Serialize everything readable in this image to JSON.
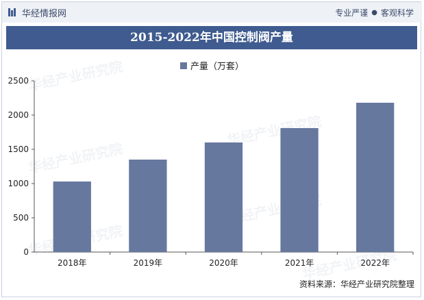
{
  "header": {
    "logo_text": "华经情报网",
    "tagline_left": "专业严谨",
    "tagline_dot": "●",
    "tagline_right": "客观科学"
  },
  "source": "资料来源：华经产业研究院整理",
  "watermark": "华经产业研究院",
  "colors": {
    "bar": "#67789f",
    "title_bg": "#3f5b8f",
    "header_bg": "#eef1f6"
  },
  "chart_data": {
    "type": "bar",
    "title": "2015-2022年中国控制阀产量",
    "categories": [
      "2018年",
      "2019年",
      "2020年",
      "2021年",
      "2022年"
    ],
    "series": [
      {
        "name": "产量（万套）",
        "values": [
          1030,
          1350,
          1600,
          1810,
          2180
        ]
      }
    ],
    "ylim": [
      0,
      2500
    ],
    "yticks": [
      0,
      500,
      1000,
      1500,
      2000,
      2500
    ],
    "grid": false,
    "legend": "top-center"
  }
}
